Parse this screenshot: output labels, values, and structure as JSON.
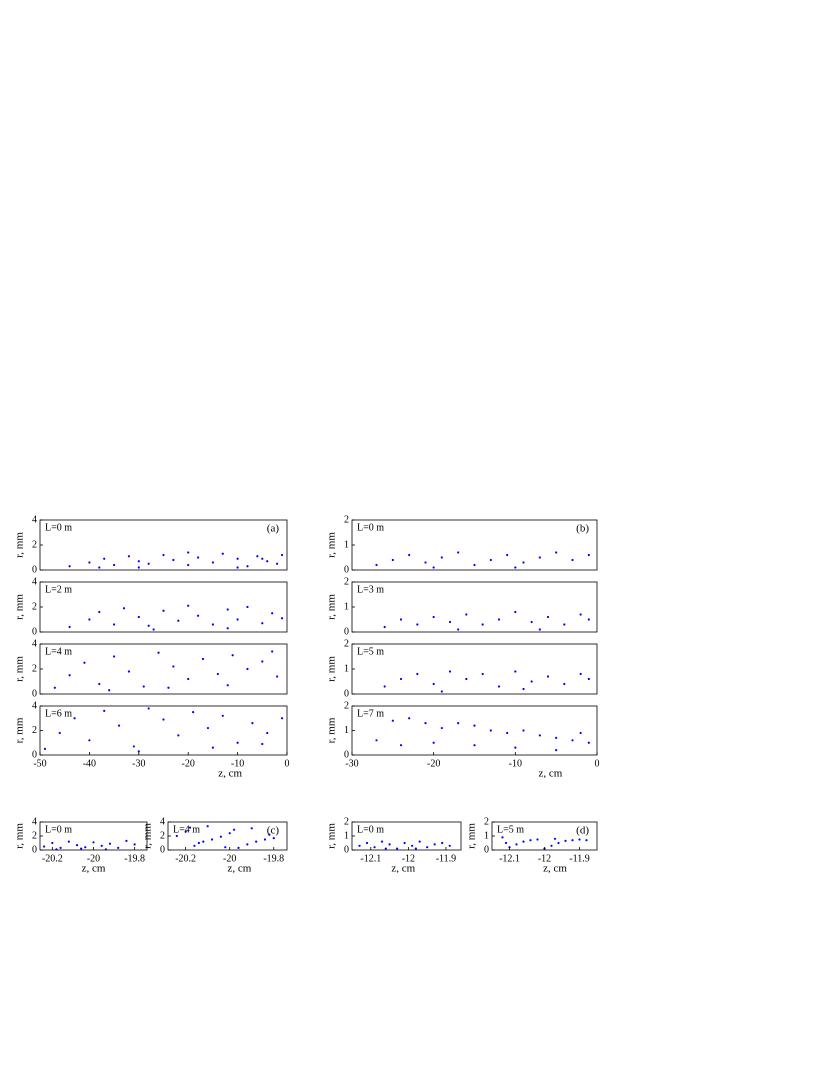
{
  "chart_data": [
    {
      "type": "scatter",
      "annotation": "L=0 m",
      "panel_label": "(a)",
      "ylabel": "r, mm",
      "color": "#0000ff",
      "xlim": [
        -50,
        0
      ],
      "ylim": [
        0,
        4
      ],
      "yticks": [
        0,
        2,
        4
      ],
      "x": [
        -44,
        -40,
        -37,
        -35,
        -32,
        -30,
        -28,
        -25,
        -23,
        -20,
        -18,
        -15,
        -13,
        -10,
        -8,
        -6,
        -4,
        -2,
        -1,
        -30,
        -20,
        -10,
        -5,
        -38
      ],
      "y": [
        0.3,
        0.6,
        0.9,
        0.4,
        1.1,
        0.7,
        0.5,
        1.2,
        0.8,
        0.4,
        1.0,
        0.6,
        1.3,
        0.9,
        0.3,
        1.1,
        0.7,
        0.5,
        1.2,
        0.2,
        1.4,
        0.2,
        0.9,
        0.2
      ]
    },
    {
      "type": "scatter",
      "annotation": "L=2 m",
      "ylabel": "r, mm",
      "color": "#0000ff",
      "xlim": [
        -50,
        0
      ],
      "ylim": [
        0,
        4
      ],
      "yticks": [
        0,
        2,
        4
      ],
      "x": [
        -44,
        -40,
        -38,
        -35,
        -33,
        -30,
        -28,
        -25,
        -22,
        -20,
        -18,
        -15,
        -12,
        -10,
        -8,
        -5,
        -3,
        -1,
        -27,
        -12
      ],
      "y": [
        0.4,
        1.0,
        1.6,
        0.6,
        1.9,
        1.2,
        0.5,
        1.7,
        0.9,
        2.1,
        1.3,
        0.6,
        1.8,
        1.0,
        2.0,
        0.7,
        1.5,
        1.1,
        0.2,
        0.3
      ]
    },
    {
      "type": "scatter",
      "annotation": "L=4 m",
      "ylabel": "r, mm",
      "color": "#0000ff",
      "xlim": [
        -50,
        0
      ],
      "ylim": [
        0,
        4
      ],
      "yticks": [
        0,
        2,
        4
      ],
      "x": [
        -47,
        -44,
        -41,
        -38,
        -35,
        -32,
        -29,
        -26,
        -23,
        -20,
        -17,
        -14,
        -11,
        -8,
        -5,
        -2,
        -36,
        -24,
        -12,
        -3
      ],
      "y": [
        0.5,
        1.5,
        2.5,
        0.8,
        3.0,
        1.8,
        0.6,
        3.3,
        2.2,
        1.2,
        2.8,
        1.6,
        3.1,
        2.0,
        2.6,
        1.4,
        0.3,
        0.5,
        0.7,
        3.4
      ]
    },
    {
      "type": "scatter",
      "annotation": "L=6 m",
      "ylabel": "r, mm",
      "xlabel": "z, cm",
      "color": "#0000ff",
      "xlim": [
        -50,
        0
      ],
      "ylim": [
        0,
        4
      ],
      "yticks": [
        0,
        2,
        4
      ],
      "xticks": [
        -50,
        -40,
        -30,
        -20,
        -10,
        0
      ],
      "x": [
        -49,
        -46,
        -43,
        -40,
        -37,
        -34,
        -31,
        -28,
        -25,
        -22,
        -19,
        -16,
        -13,
        -10,
        -7,
        -4,
        -1,
        -30,
        -15,
        -5
      ],
      "y": [
        0.5,
        1.8,
        3.0,
        1.2,
        3.6,
        2.4,
        0.7,
        3.8,
        2.9,
        1.6,
        3.5,
        2.2,
        3.2,
        1.0,
        2.6,
        1.8,
        3.0,
        0.3,
        0.6,
        0.9
      ]
    },
    {
      "type": "scatter",
      "annotation": "L=0 m",
      "panel_label": "(b)",
      "ylabel": "r, mm",
      "color": "#0000ff",
      "xlim": [
        -30,
        0
      ],
      "ylim": [
        0,
        2
      ],
      "yticks": [
        0,
        1,
        2
      ],
      "x": [
        -27,
        -25,
        -23,
        -21,
        -19,
        -17,
        -15,
        -13,
        -11,
        -9,
        -7,
        -5,
        -3,
        -1,
        -20,
        -10
      ],
      "y": [
        0.2,
        0.4,
        0.6,
        0.3,
        0.5,
        0.7,
        0.2,
        0.4,
        0.6,
        0.3,
        0.5,
        0.7,
        0.4,
        0.6,
        0.1,
        0.1
      ]
    },
    {
      "type": "scatter",
      "annotation": "L=3 m",
      "ylabel": "r, mm",
      "color": "#0000ff",
      "xlim": [
        -30,
        0
      ],
      "ylim": [
        0,
        2
      ],
      "yticks": [
        0,
        1,
        2
      ],
      "x": [
        -26,
        -24,
        -22,
        -20,
        -18,
        -16,
        -14,
        -12,
        -10,
        -8,
        -6,
        -4,
        -2,
        -1,
        -17,
        -7
      ],
      "y": [
        0.2,
        0.5,
        0.3,
        0.6,
        0.4,
        0.7,
        0.3,
        0.5,
        0.8,
        0.4,
        0.6,
        0.3,
        0.7,
        0.5,
        0.1,
        0.1
      ]
    },
    {
      "type": "scatter",
      "annotation": "L=5 m",
      "ylabel": "r, mm",
      "color": "#0000ff",
      "xlim": [
        -30,
        0
      ],
      "ylim": [
        0,
        2
      ],
      "yticks": [
        0,
        1,
        2
      ],
      "x": [
        -26,
        -24,
        -22,
        -20,
        -18,
        -16,
        -14,
        -12,
        -10,
        -8,
        -6,
        -4,
        -2,
        -1,
        -19,
        -9
      ],
      "y": [
        0.3,
        0.6,
        0.8,
        0.4,
        0.9,
        0.6,
        0.8,
        0.3,
        0.9,
        0.5,
        0.7,
        0.4,
        0.8,
        0.6,
        0.1,
        0.2
      ]
    },
    {
      "type": "scatter",
      "annotation": "L=7 m",
      "ylabel": "r, mm",
      "xlabel": "z, cm",
      "color": "#0000ff",
      "xlim": [
        -30,
        0
      ],
      "ylim": [
        0,
        2
      ],
      "yticks": [
        0,
        1,
        2
      ],
      "xticks": [
        -30,
        -20,
        -10,
        0
      ],
      "x": [
        -27,
        -25,
        -23,
        -21,
        -19,
        -17,
        -15,
        -13,
        -11,
        -9,
        -7,
        -5,
        -3,
        -1,
        -24,
        -20,
        -15,
        -10,
        -5,
        -2
      ],
      "y": [
        0.6,
        1.4,
        1.5,
        1.3,
        1.1,
        1.3,
        1.2,
        1.0,
        0.9,
        1.0,
        0.8,
        0.7,
        0.6,
        0.5,
        0.4,
        0.5,
        0.4,
        0.3,
        0.2,
        0.9
      ]
    },
    {
      "type": "scatter",
      "annotation": "L=0 m",
      "ylabel": "r, mm",
      "xlabel": "z, cm",
      "color": "#0000ff",
      "xlim": [
        -20.26,
        -19.74
      ],
      "ylim": [
        0,
        4
      ],
      "yticks": [
        0,
        2,
        4
      ],
      "xticks": [
        -20.2,
        -20,
        -19.8
      ],
      "x": [
        -20.24,
        -20.2,
        -20.16,
        -20.12,
        -20.08,
        -20.04,
        -20.0,
        -19.96,
        -19.92,
        -19.88,
        -19.84,
        -19.8,
        -20.18,
        -20.06,
        -19.94
      ],
      "y": [
        0.5,
        1.0,
        0.3,
        1.2,
        0.7,
        0.4,
        1.1,
        0.6,
        0.9,
        0.3,
        1.3,
        0.8,
        0.1,
        0.2,
        0.1
      ]
    },
    {
      "type": "scatter",
      "annotation": "L=4 m",
      "panel_label": "(c)",
      "ylabel": "r, mm",
      "xlabel": "z, cm",
      "color": "#0000ff",
      "xlim": [
        -20.28,
        -19.74
      ],
      "ylim": [
        0,
        4
      ],
      "yticks": [
        0,
        2,
        4
      ],
      "xticks": [
        -20.2,
        -20,
        -19.8
      ],
      "x": [
        -20.24,
        -20.2,
        -20.16,
        -20.12,
        -20.08,
        -20.04,
        -20.0,
        -19.96,
        -19.92,
        -19.88,
        -19.84,
        -19.8,
        -20.18,
        -20.1,
        -20.02,
        -19.9,
        -19.82,
        -20.14,
        -19.98
      ],
      "y": [
        2.0,
        2.6,
        0.6,
        1.2,
        1.5,
        1.9,
        2.4,
        0.3,
        0.8,
        1.2,
        1.5,
        1.7,
        3.2,
        3.4,
        0.4,
        3.1,
        2.2,
        1.0,
        2.9
      ]
    },
    {
      "type": "scatter",
      "annotation": "L=0 m",
      "ylabel": "r, mm",
      "xlabel": "z, cm",
      "color": "#0000ff",
      "xlim": [
        -12.15,
        -11.86
      ],
      "ylim": [
        0,
        2
      ],
      "yticks": [
        0,
        1,
        2
      ],
      "xticks": [
        -12.1,
        -12,
        -11.9
      ],
      "x": [
        -12.13,
        -12.11,
        -12.09,
        -12.07,
        -12.05,
        -12.03,
        -12.01,
        -11.99,
        -11.97,
        -11.95,
        -11.93,
        -11.91,
        -11.89,
        -12.06,
        -11.98
      ],
      "y": [
        0.3,
        0.5,
        0.2,
        0.6,
        0.4,
        0.1,
        0.5,
        0.3,
        0.6,
        0.2,
        0.4,
        0.5,
        0.3,
        0.1,
        0.1
      ]
    },
    {
      "type": "scatter",
      "annotation": "L=5 m",
      "panel_label": "(d)",
      "ylabel": "r, mm",
      "xlabel": "z, cm",
      "color": "#0000ff",
      "xlim": [
        -12.15,
        -11.85
      ],
      "ylim": [
        0,
        2
      ],
      "yticks": [
        0,
        1,
        2
      ],
      "xticks": [
        -12.1,
        -12,
        -11.9
      ],
      "x": [
        -12.12,
        -12.1,
        -12.08,
        -12.06,
        -12.04,
        -12.02,
        -12.0,
        -11.98,
        -11.96,
        -11.94,
        -11.92,
        -11.9,
        -11.88,
        -12.11,
        -11.97
      ],
      "y": [
        0.9,
        0.2,
        0.4,
        0.6,
        0.7,
        0.75,
        0.1,
        0.3,
        0.5,
        0.65,
        0.7,
        0.75,
        0.7,
        0.5,
        0.8
      ]
    }
  ]
}
